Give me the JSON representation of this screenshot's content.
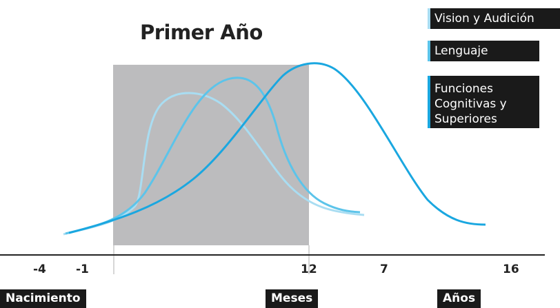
{
  "title": "Primer Año",
  "legend": [
    {
      "label": "Vision y Audición",
      "color": "#a9ddf2"
    },
    {
      "label": "Lenguaje",
      "color": "#5cc4ea"
    },
    {
      "label": "Funciones Cognitivas y Superiores",
      "color": "#1aa7e0"
    }
  ],
  "axis_ticks": [
    "-4",
    "-1",
    "12",
    "7",
    "16"
  ],
  "bottom_labels": {
    "birth": "Nacimiento",
    "months": "Meses",
    "years": "Años"
  },
  "colors": {
    "vision": "#a9ddf2",
    "language": "#5cc4ea",
    "cognitive": "#1aa7e0",
    "first_year_band": "#bcbcbe",
    "axis": "#222222"
  }
}
